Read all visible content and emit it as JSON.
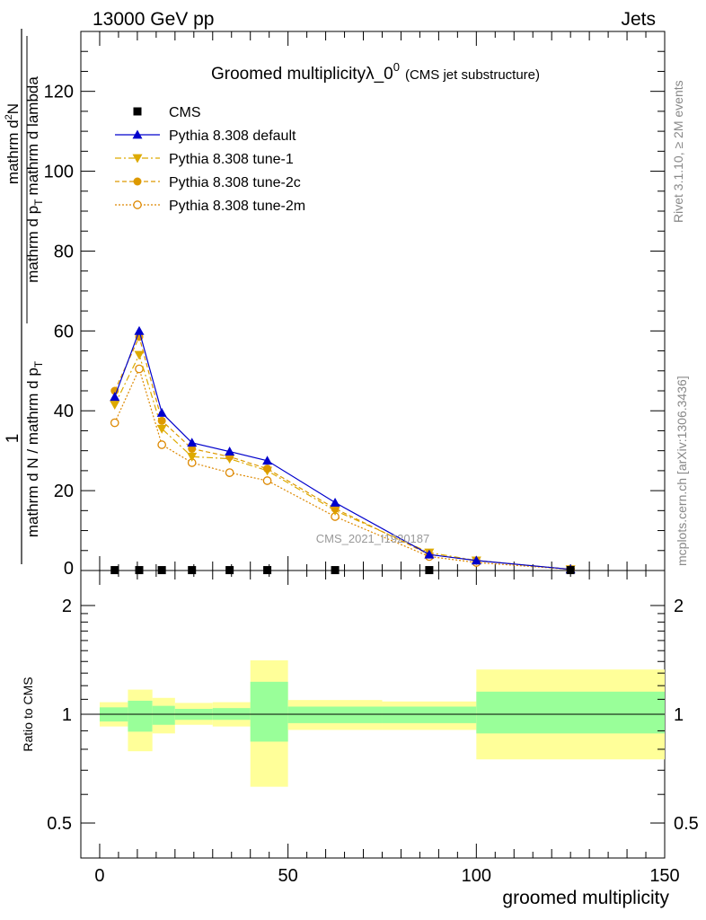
{
  "header": {
    "energy_label": "13000 GeV pp",
    "category_label": "Jets",
    "title_main": "Groomed multiplicityλ_0",
    "title_sup": "0",
    "title_sub": "(CMS jet substructure)",
    "side_label_top": "Rivet 3.1.10, ≥ 2M events",
    "side_label_bottom": "mcplots.cern.ch [arXiv:1306.3436]",
    "watermark": "CMS_2021_I1920187"
  },
  "ylabel": {
    "numerator": "1",
    "denominator": "mathrm d N / mathrm d p",
    "denominator_sub": "T",
    "numerator2": "mathrm d",
    "numerator2_sup": "2",
    "numerator2_tail": "N",
    "denominator2": "mathrm d p",
    "denominator2_sub": "T",
    "denominator2_tail": "mathrm d lambda"
  },
  "ratio_ylabel": "Ratio to CMS",
  "xlabel": "groomed multiplicity",
  "legend": [
    {
      "label": "CMS",
      "color": "#000000",
      "marker": "square",
      "line": "none"
    },
    {
      "label": "Pythia 8.308 default",
      "color": "#0000cc",
      "marker": "triangle-up",
      "line": "solid"
    },
    {
      "label": "Pythia 8.308 tune-1",
      "color": "#ddaa00",
      "marker": "triangle-down",
      "line": "dashdot"
    },
    {
      "label": "Pythia 8.308 tune-2c",
      "color": "#dd9900",
      "marker": "circle",
      "line": "dashed"
    },
    {
      "label": "Pythia 8.308 tune-2m",
      "color": "#dd8800",
      "marker": "circle-open",
      "line": "dotted"
    }
  ],
  "chart_data": {
    "type": "line",
    "xlim": [
      -5,
      150
    ],
    "ylim": [
      0,
      135
    ],
    "x_ticks": [
      0,
      50,
      100,
      150
    ],
    "y_ticks": [
      20,
      40,
      60,
      80,
      100,
      120
    ],
    "y_tick_labels": [
      "20",
      "40",
      "60",
      "80",
      "100",
      "120"
    ],
    "y_zero_label": "0",
    "x": [
      4,
      10.5,
      16.5,
      24.5,
      34.5,
      44.5,
      62.5,
      87.5,
      100,
      125
    ],
    "series": [
      {
        "name": "CMS",
        "color": "#000000",
        "marker": "square",
        "x": [
          4,
          10.5,
          16.5,
          24.5,
          34.5,
          44.5,
          62.5,
          87.5,
          125
        ],
        "values": [
          0.1,
          0.1,
          0.1,
          0.1,
          0.1,
          0.1,
          0.1,
          0.1,
          0.1
        ]
      },
      {
        "name": "Pythia 8.308 default",
        "color": "#0000cc",
        "marker": "triangle-up",
        "dash": "",
        "x": [
          4,
          10.5,
          16.5,
          24.5,
          34.5,
          44.5,
          62.5,
          87.5,
          100,
          125
        ],
        "values": [
          43.5,
          60.0,
          39.5,
          32.0,
          29.8,
          27.5,
          17.0,
          4.0,
          2.5,
          0.3
        ]
      },
      {
        "name": "Pythia 8.308 tune-1",
        "color": "#ddaa00",
        "marker": "triangle-down",
        "dash": "7,3,2,3",
        "x": [
          4,
          10.5,
          16.5,
          24.5,
          34.5,
          44.5,
          62.5,
          87.5,
          100,
          125
        ],
        "values": [
          41.5,
          54.0,
          35.5,
          28.5,
          28.0,
          25.0,
          15.0,
          4.5,
          2.5,
          0.3
        ]
      },
      {
        "name": "Pythia 8.308 tune-2c",
        "color": "#dd9900",
        "marker": "circle",
        "dash": "5,3",
        "x": [
          4,
          10.5,
          16.5,
          24.5,
          34.5,
          44.5,
          62.5,
          87.5,
          100,
          125
        ],
        "values": [
          45.0,
          58.5,
          37.5,
          30.5,
          28.5,
          25.5,
          15.5,
          4.0,
          2.5,
          0.3
        ]
      },
      {
        "name": "Pythia 8.308 tune-2m",
        "color": "#dd8800",
        "marker": "circle-open",
        "dash": "2,2",
        "x": [
          4,
          10.5,
          16.5,
          24.5,
          34.5,
          44.5,
          62.5,
          87.5,
          100,
          125
        ],
        "values": [
          37.0,
          50.5,
          31.5,
          27.0,
          24.5,
          22.5,
          13.5,
          3.5,
          2.0,
          0.3
        ]
      }
    ],
    "ratio": {
      "ylim": [
        0.4,
        2.5
      ],
      "y_ticks": [
        0.5,
        1,
        2
      ],
      "y_tick_labels": [
        "0.5",
        "1",
        "2"
      ],
      "bins": [
        {
          "lo": 0,
          "hi": 7.5,
          "inner": [
            0.955,
            1.045
          ],
          "outer": [
            0.925,
            1.08
          ]
        },
        {
          "lo": 7.5,
          "hi": 14,
          "inner": [
            0.895,
            1.09
          ],
          "outer": [
            0.79,
            1.17
          ]
        },
        {
          "lo": 14,
          "hi": 20,
          "inner": [
            0.935,
            1.055
          ],
          "outer": [
            0.885,
            1.11
          ]
        },
        {
          "lo": 20,
          "hi": 30,
          "inner": [
            0.965,
            1.035
          ],
          "outer": [
            0.935,
            1.075
          ]
        },
        {
          "lo": 30,
          "hi": 40,
          "inner": [
            0.965,
            1.04
          ],
          "outer": [
            0.925,
            1.08
          ]
        },
        {
          "lo": 40,
          "hi": 50,
          "inner": [
            0.84,
            1.23
          ],
          "outer": [
            0.63,
            1.41
          ]
        },
        {
          "lo": 50,
          "hi": 75,
          "inner": [
            0.945,
            1.05
          ],
          "outer": [
            0.905,
            1.095
          ]
        },
        {
          "lo": 75,
          "hi": 100,
          "inner": [
            0.945,
            1.05
          ],
          "outer": [
            0.905,
            1.085
          ]
        },
        {
          "lo": 100,
          "hi": 150,
          "inner": [
            0.885,
            1.155
          ],
          "outer": [
            0.75,
            1.33
          ]
        }
      ]
    }
  }
}
